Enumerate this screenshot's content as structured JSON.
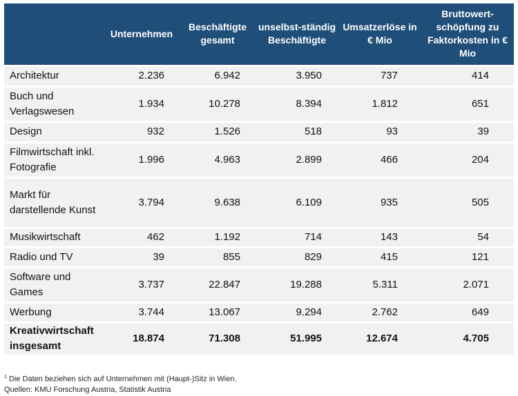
{
  "headers": {
    "label": "",
    "col1": "Unternehmen",
    "col2": "Beschäftigte gesamt",
    "col3": "unselbst-ständig Beschäftigte",
    "col4": "Umsatzerlöse in € Mio",
    "col5": "Bruttowert-schöpfung zu Faktorkosten in € Mio"
  },
  "rows": [
    {
      "label": "Architektur",
      "v1": "2.236",
      "v2": "6.942",
      "v3": "3.950",
      "v4": "737",
      "v5": "414"
    },
    {
      "label": "Buch und Verlagswesen",
      "v1": "1.934",
      "v2": "10.278",
      "v3": "8.394",
      "v4": "1.812",
      "v5": "651"
    },
    {
      "label": "Design",
      "v1": "932",
      "v2": "1.526",
      "v3": "518",
      "v4": "93",
      "v5": "39"
    },
    {
      "label": "Filmwirtschaft inkl. Fotografie",
      "v1": "1.996",
      "v2": "4.963",
      "v3": "2.899",
      "v4": "466",
      "v5": "204"
    },
    {
      "label": "Markt für darstellende Kunst",
      "v1": "3.794",
      "v2": "9.638",
      "v3": "6.109",
      "v4": "935",
      "v5": "505"
    },
    {
      "label": "Musikwirtschaft",
      "v1": "462",
      "v2": "1.192",
      "v3": "714",
      "v4": "143",
      "v5": "54"
    },
    {
      "label": "Radio und TV",
      "v1": "39",
      "v2": "855",
      "v3": "829",
      "v4": "415",
      "v5": "121"
    },
    {
      "label": "Software und Games",
      "v1": "3.737",
      "v2": "22.847",
      "v3": "19.288",
      "v4": "5.311",
      "v5": "2.071"
    },
    {
      "label": "Werbung",
      "v1": "3.744",
      "v2": "13.067",
      "v3": "9.294",
      "v4": "2.762",
      "v5": "649"
    }
  ],
  "total": {
    "label": "Kreativwirtschaft insgesamt",
    "v1": "18.874",
    "v2": "71.308",
    "v3": "51.995",
    "v4": "12.674",
    "v5": "4.705"
  },
  "footnote": {
    "marker": "1",
    "line1": "Die Daten beziehen sich auf Unternehmen mit (Haupt-)Sitz in Wien.",
    "line2": "Quellen: KMU Forschung Austria, Statistik Austria"
  },
  "colors": {
    "header_bg": "#1f4e79",
    "header_text": "#ffffff",
    "row_bg": "#f1f1f1"
  }
}
